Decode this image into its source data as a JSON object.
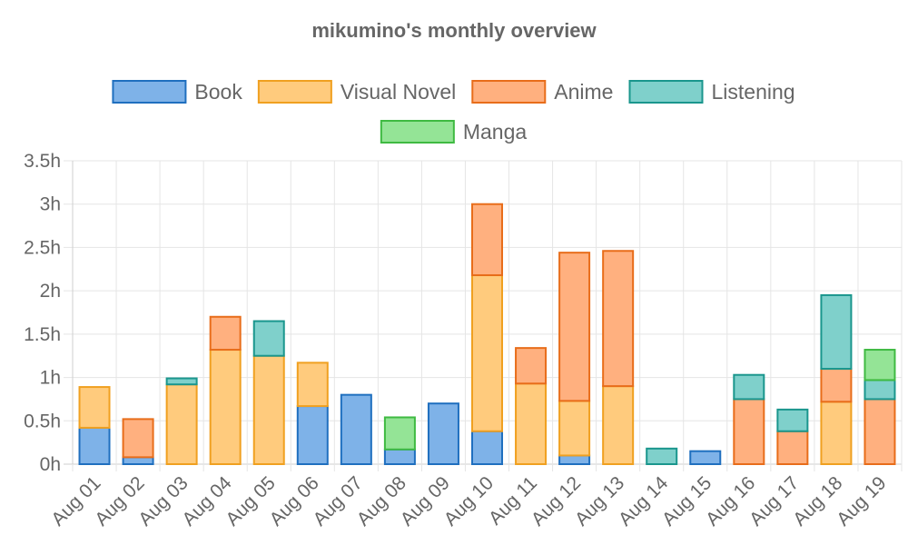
{
  "chart_data": {
    "type": "bar",
    "stacked": true,
    "title": "mikumino's monthly overview",
    "xlabel": "",
    "ylabel": "",
    "ylim": [
      0,
      3.5
    ],
    "yticks": [
      0,
      0.5,
      1,
      1.5,
      2,
      2.5,
      3,
      3.5
    ],
    "ytick_labels": [
      "0h",
      "0.5h",
      "1h",
      "1.5h",
      "2h",
      "2.5h",
      "3h",
      "3.5h"
    ],
    "grid": true,
    "legend_position": "top",
    "categories": [
      "Aug 01",
      "Aug 02",
      "Aug 03",
      "Aug 04",
      "Aug 05",
      "Aug 06",
      "Aug 07",
      "Aug 08",
      "Aug 09",
      "Aug 10",
      "Aug 11",
      "Aug 12",
      "Aug 13",
      "Aug 14",
      "Aug 15",
      "Aug 16",
      "Aug 17",
      "Aug 18",
      "Aug 19"
    ],
    "series": [
      {
        "name": "Book",
        "fill": "#7eb2e8",
        "stroke": "#1f6fbf",
        "values": [
          0.42,
          0.08,
          0,
          0,
          0,
          0.67,
          0.8,
          0.17,
          0.7,
          0.38,
          0,
          0.1,
          0,
          0,
          0.15,
          0,
          0,
          0,
          0
        ]
      },
      {
        "name": "Visual Novel",
        "fill": "#ffcb7d",
        "stroke": "#f0a020",
        "values": [
          0.47,
          0,
          0.92,
          1.32,
          1.25,
          0.5,
          0,
          0,
          0,
          1.8,
          0.93,
          0.63,
          0.9,
          0,
          0,
          0,
          0,
          0.72,
          0
        ]
      },
      {
        "name": "Anime",
        "fill": "#ffb07f",
        "stroke": "#e86d1a",
        "values": [
          0,
          0.44,
          0,
          0.38,
          0,
          0,
          0,
          0,
          0,
          0.82,
          0.41,
          1.71,
          1.56,
          0,
          0,
          0.75,
          0.38,
          0.38,
          0.75
        ]
      },
      {
        "name": "Listening",
        "fill": "#7fd0cb",
        "stroke": "#1a968d",
        "values": [
          0,
          0,
          0.07,
          0,
          0.4,
          0,
          0,
          0,
          0,
          0,
          0,
          0,
          0,
          0.18,
          0,
          0.28,
          0.25,
          0.85,
          0.22
        ]
      },
      {
        "name": "Manga",
        "fill": "#94e496",
        "stroke": "#3fba42",
        "values": [
          0,
          0,
          0,
          0,
          0,
          0,
          0,
          0.37,
          0,
          0,
          0,
          0,
          0,
          0,
          0,
          0,
          0,
          0,
          0.35
        ]
      }
    ]
  }
}
